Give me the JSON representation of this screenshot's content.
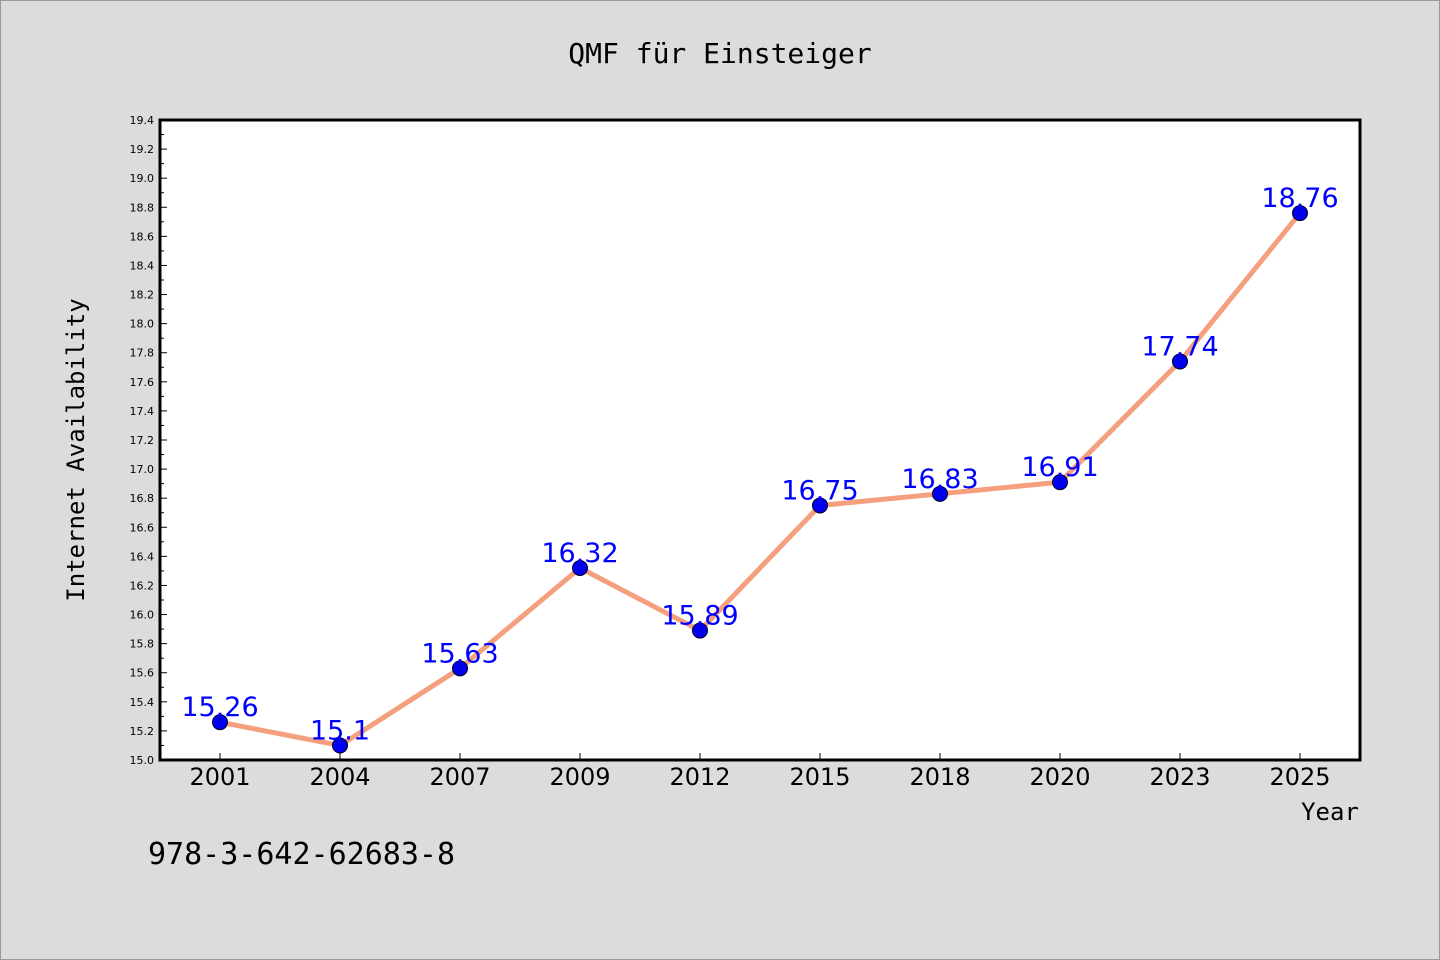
{
  "chart_data": {
    "type": "line",
    "title": "QMF für Einsteiger",
    "xlabel": "Year",
    "ylabel": "Internet Availability",
    "categories": [
      "2001",
      "2004",
      "2007",
      "2009",
      "2012",
      "2015",
      "2018",
      "2020",
      "2023",
      "2025"
    ],
    "values": [
      15.26,
      15.1,
      15.63,
      16.32,
      15.89,
      16.75,
      16.83,
      16.91,
      17.74,
      18.76
    ],
    "data_labels": [
      "15.26",
      "15.1",
      "15.63",
      "16.32",
      "15.89",
      "16.75",
      "16.83",
      "16.91",
      "17.74",
      "18.76"
    ],
    "ylim": [
      15.0,
      19.4
    ],
    "yticks": [
      "15.0",
      "15.2",
      "15.4",
      "15.6",
      "15.8",
      "16.0",
      "16.2",
      "16.4",
      "16.6",
      "16.8",
      "17.0",
      "17.2",
      "17.4",
      "17.6",
      "17.8",
      "18.0",
      "18.2",
      "18.4",
      "18.6",
      "18.8",
      "19.0",
      "19.2",
      "19.4"
    ],
    "grid": false,
    "line_color": "#f4a07e",
    "marker_color": "#0000ee",
    "label_color": "#0000ff"
  },
  "footer": {
    "isbn": "978-3-642-62683-8"
  }
}
